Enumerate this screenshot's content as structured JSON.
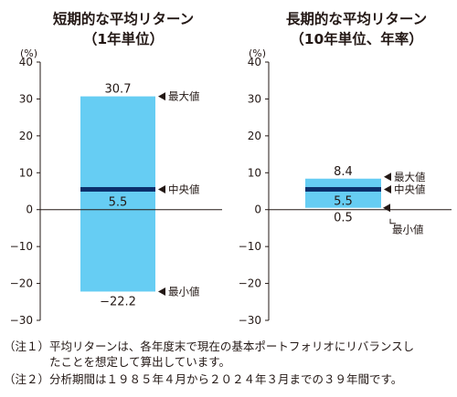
{
  "chart_data": [
    {
      "type": "bar",
      "title": "短期的な平均リターン",
      "subtitle": "（1年単位）",
      "ylabel": "(%)",
      "ylim": [
        -30,
        40
      ],
      "yticks": [
        -30,
        -20,
        -10,
        0,
        10,
        20,
        30,
        40
      ],
      "ytick_labels": [
        "−30",
        "−20",
        "−10",
        "0",
        "10",
        "20",
        "30",
        "40"
      ],
      "range": {
        "max": 30.7,
        "median": 5.5,
        "min": -22.2
      },
      "value_labels": {
        "max": "30.7",
        "median": "5.5",
        "min": "−22.2"
      },
      "marker_labels": {
        "max": "最大値",
        "median": "中央値",
        "min": "最小値"
      },
      "bar_color": "#66cdf3",
      "median_color": "#0b2f6b"
    },
    {
      "type": "bar",
      "title": "長期的な平均リターン",
      "subtitle": "（10年単位、年率）",
      "ylabel": "(%)",
      "ylim": [
        -30,
        40
      ],
      "yticks": [
        -30,
        -20,
        -10,
        0,
        10,
        20,
        30,
        40
      ],
      "ytick_labels": [
        "−30",
        "−20",
        "−10",
        "0",
        "10",
        "20",
        "30",
        "40"
      ],
      "range": {
        "max": 8.4,
        "median": 5.5,
        "min": 0.5
      },
      "value_labels": {
        "max": "8.4",
        "median": "5.5",
        "min": "0.5"
      },
      "marker_labels": {
        "max": "最大値",
        "median": "中央値",
        "min": "最小値"
      },
      "bar_color": "#66cdf3",
      "median_color": "#0b2f6b"
    }
  ],
  "notes": [
    "（注１）平均リターンは、各年度末で現在の基本ポートフォリオにリバランスし",
    "　　　　たことを想定して算出しています。",
    "（注２）分析期間は１９８５年４月から２０２４年３月までの３９年間です。"
  ]
}
